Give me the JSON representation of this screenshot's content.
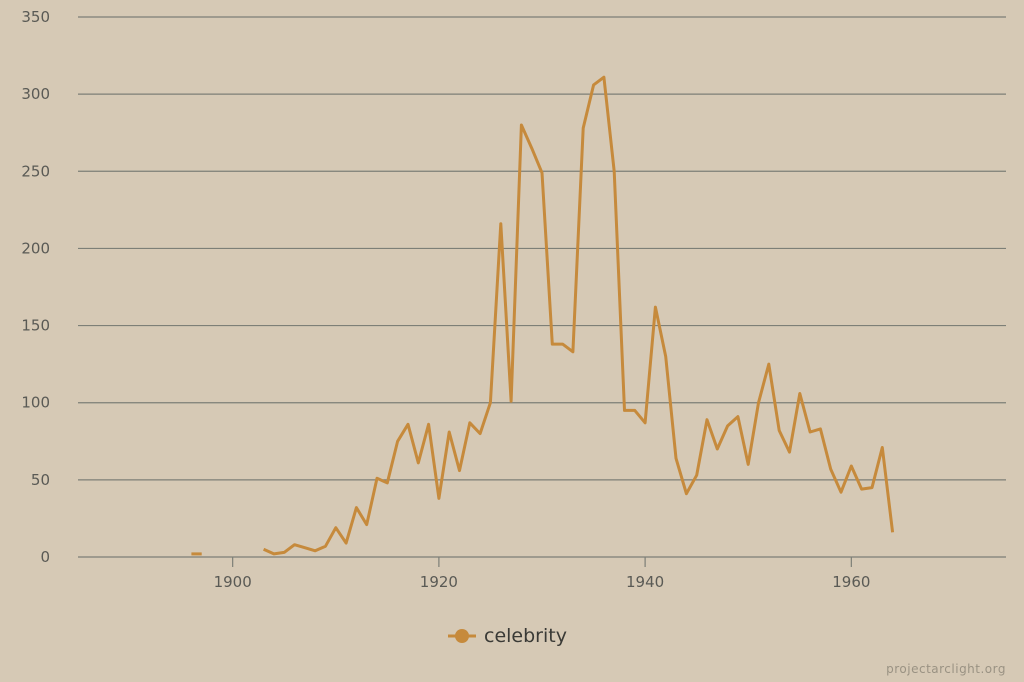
{
  "chart_data": {
    "type": "line",
    "title": "",
    "xlabel": "",
    "ylabel": "",
    "xlim": [
      1885,
      1975
    ],
    "ylim": [
      0,
      350
    ],
    "x_ticks": [
      1900,
      1920,
      1940,
      1960
    ],
    "y_ticks": [
      0,
      50,
      100,
      150,
      200,
      250,
      300,
      350
    ],
    "grid": "horizontal",
    "legend_position": "bottom-center",
    "colors": {
      "background": "#d6c9b5",
      "grid": "#7d7f77",
      "axis_text": "#5a5a55",
      "series": "#c68a3c"
    },
    "series": [
      {
        "name": "celebrity",
        "color": "#c68a3c",
        "segments": [
          [
            [
              1896,
              2
            ],
            [
              1897,
              2
            ]
          ],
          [
            [
              1903,
              5
            ],
            [
              1904,
              2
            ],
            [
              1905,
              3
            ],
            [
              1906,
              8
            ],
            [
              1907,
              6
            ],
            [
              1908,
              4
            ],
            [
              1909,
              7
            ],
            [
              1910,
              19
            ],
            [
              1911,
              9
            ],
            [
              1912,
              32
            ],
            [
              1913,
              21
            ],
            [
              1914,
              51
            ],
            [
              1915,
              48
            ],
            [
              1916,
              75
            ],
            [
              1917,
              86
            ],
            [
              1918,
              61
            ],
            [
              1919,
              86
            ],
            [
              1920,
              38
            ],
            [
              1921,
              81
            ],
            [
              1922,
              56
            ],
            [
              1923,
              87
            ],
            [
              1924,
              80
            ],
            [
              1925,
              100
            ],
            [
              1926,
              216
            ],
            [
              1927,
              101
            ],
            [
              1928,
              280
            ],
            [
              1929,
              265
            ],
            [
              1930,
              249
            ],
            [
              1931,
              138
            ],
            [
              1932,
              138
            ],
            [
              1933,
              133
            ],
            [
              1934,
              278
            ],
            [
              1935,
              306
            ],
            [
              1936,
              311
            ],
            [
              1937,
              250
            ],
            [
              1938,
              95
            ],
            [
              1939,
              95
            ],
            [
              1940,
              87
            ],
            [
              1941,
              162
            ],
            [
              1942,
              130
            ],
            [
              1943,
              64
            ],
            [
              1944,
              41
            ],
            [
              1945,
              53
            ],
            [
              1946,
              89
            ],
            [
              1947,
              70
            ],
            [
              1948,
              85
            ],
            [
              1949,
              91
            ],
            [
              1950,
              60
            ],
            [
              1951,
              100
            ],
            [
              1952,
              125
            ],
            [
              1953,
              82
            ],
            [
              1954,
              68
            ],
            [
              1955,
              106
            ],
            [
              1956,
              81
            ],
            [
              1957,
              83
            ],
            [
              1958,
              57
            ],
            [
              1959,
              42
            ],
            [
              1960,
              59
            ],
            [
              1961,
              44
            ],
            [
              1962,
              45
            ],
            [
              1963,
              71
            ],
            [
              1964,
              16
            ]
          ]
        ]
      }
    ]
  },
  "watermark": "projectarclight.org"
}
